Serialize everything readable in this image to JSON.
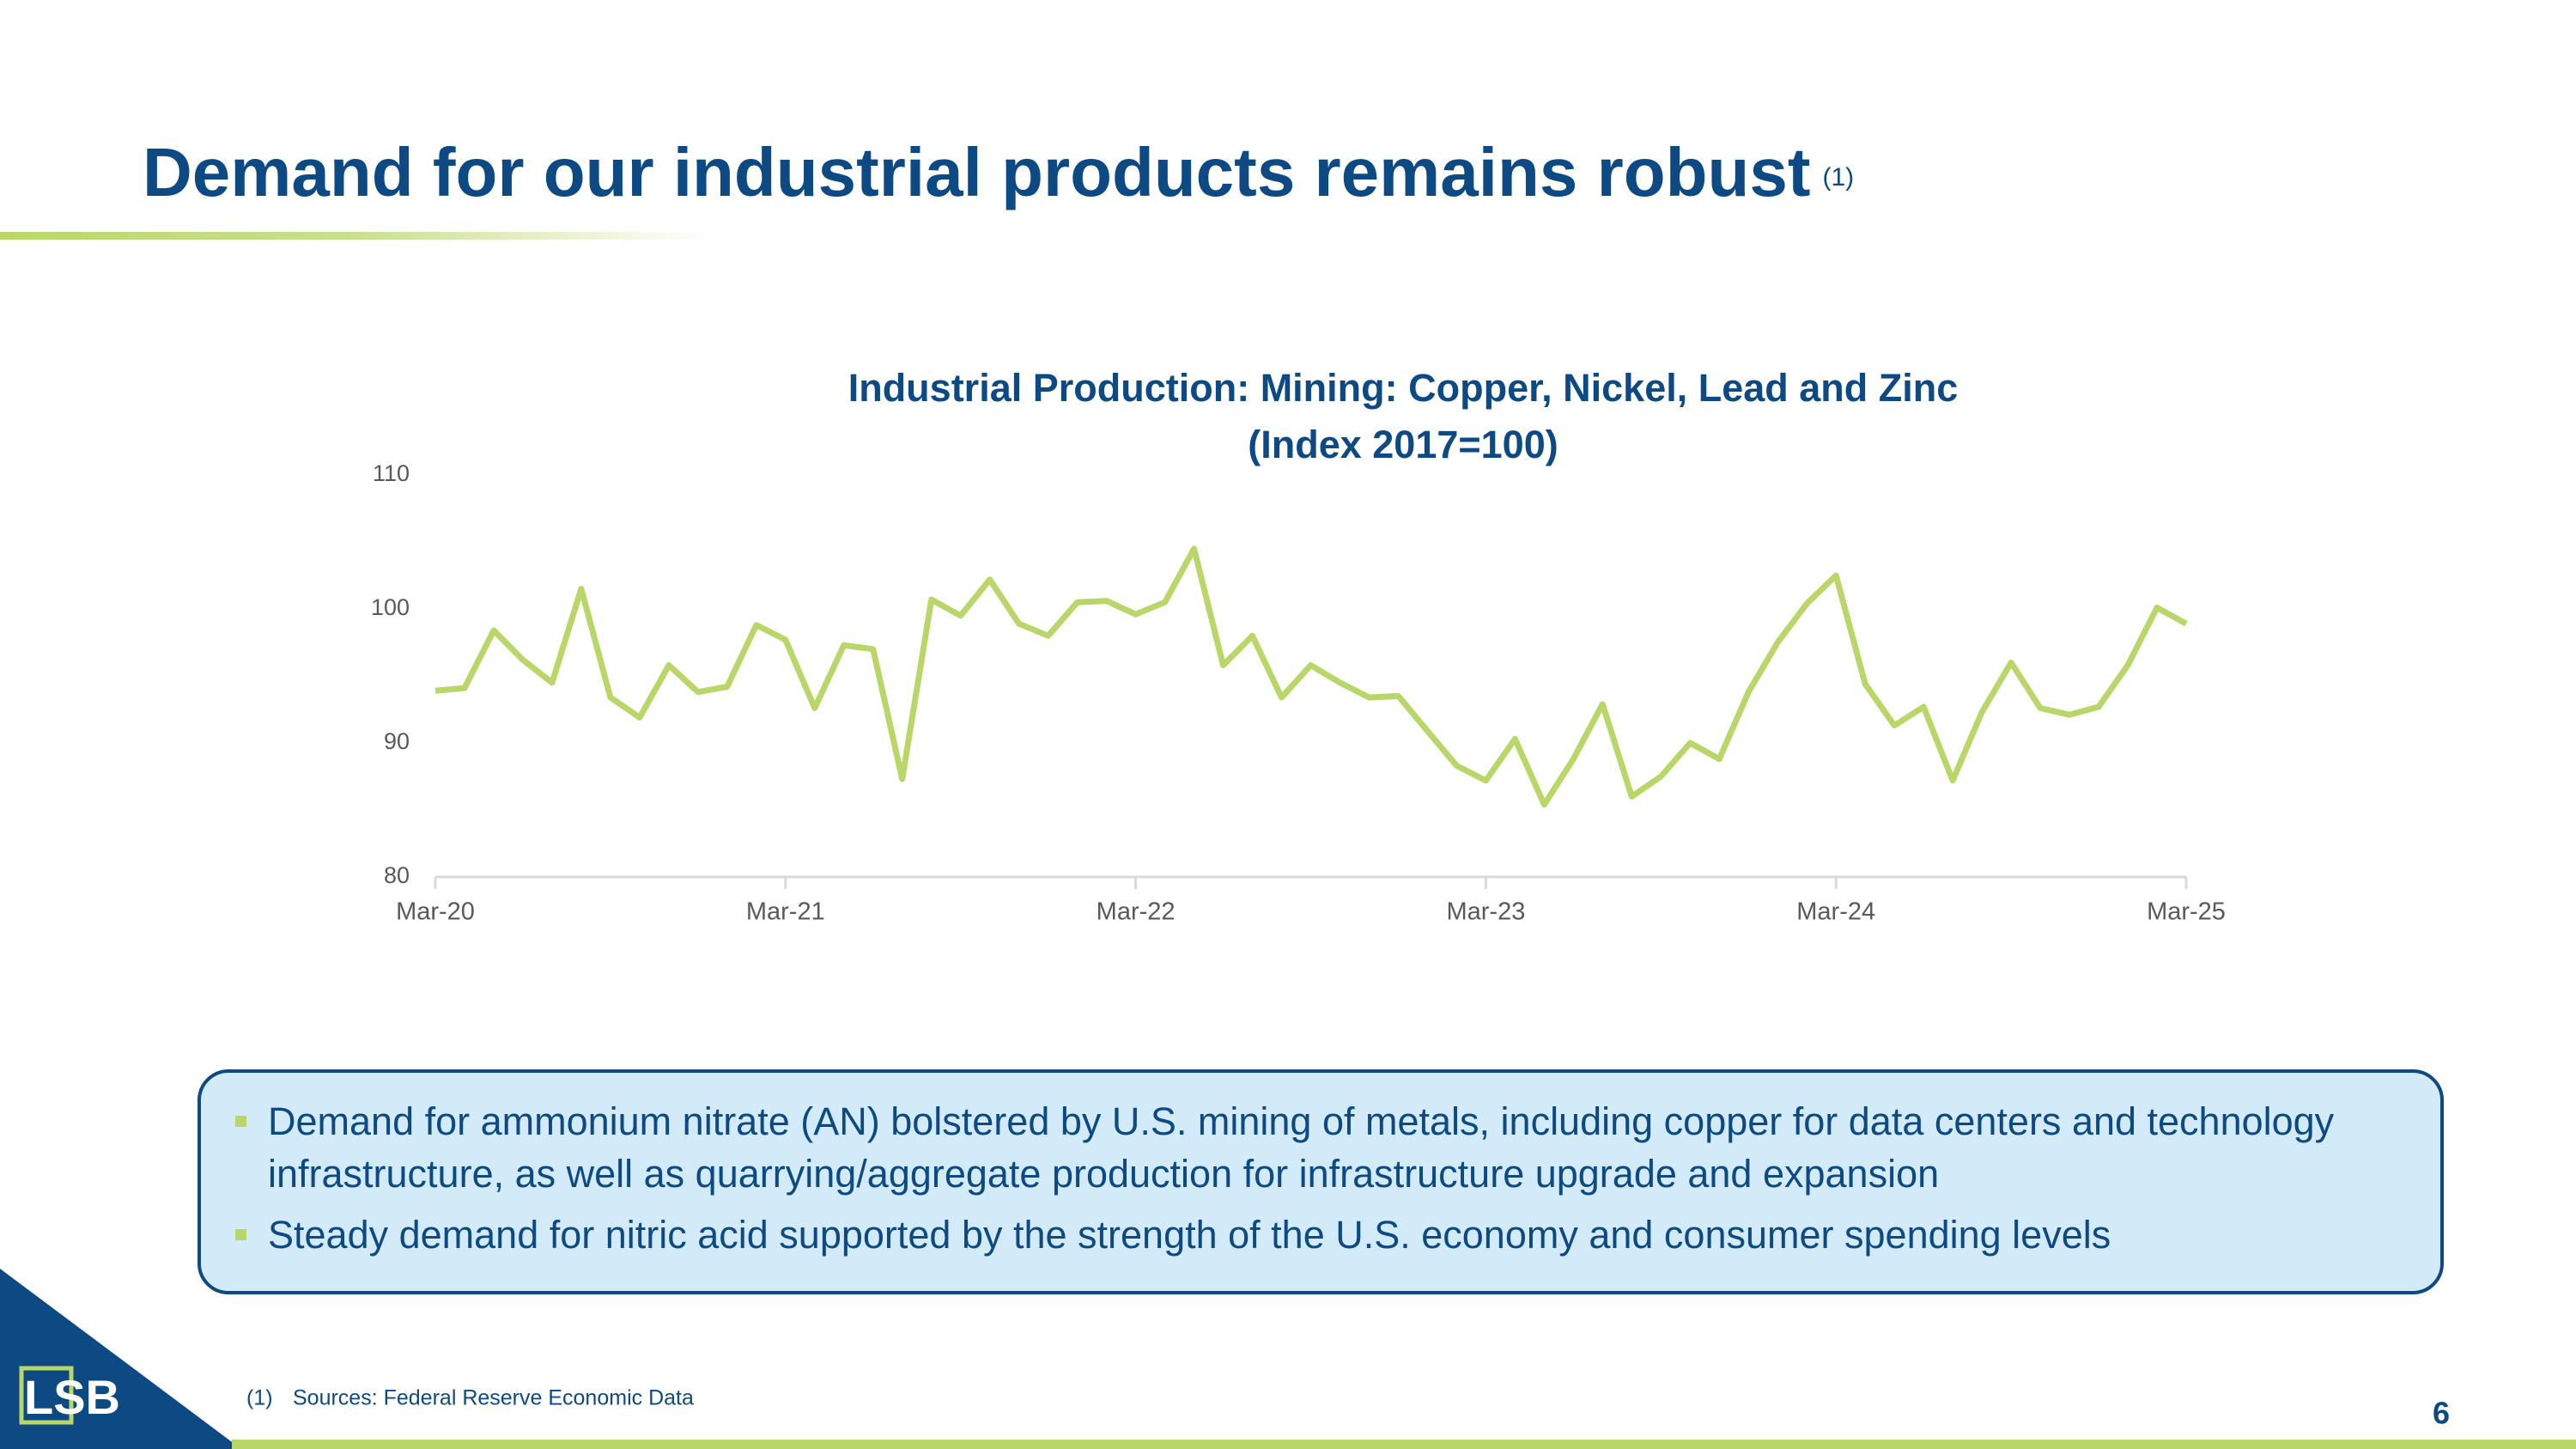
{
  "title": "Demand for our industrial products remains robust",
  "title_note": "(1)",
  "chart_data": {
    "type": "line",
    "title": "Industrial Production: Mining: Copper, Nickel, Lead and Zinc",
    "subtitle": "(Index 2017=100)",
    "categories": [
      "Mar-20",
      null,
      null,
      null,
      null,
      null,
      null,
      null,
      null,
      null,
      null,
      null,
      "Mar-21",
      null,
      null,
      null,
      null,
      null,
      null,
      null,
      null,
      null,
      null,
      null,
      "Mar-22",
      null,
      null,
      null,
      null,
      null,
      null,
      null,
      null,
      null,
      null,
      null,
      "Mar-23",
      null,
      null,
      null,
      null,
      null,
      null,
      null,
      null,
      null,
      null,
      null,
      "Mar-24",
      null,
      null,
      null,
      null,
      null,
      null,
      null,
      null,
      null,
      null,
      null,
      "Mar-25"
    ],
    "values": [
      93.9,
      94.1,
      98.4,
      96.2,
      94.5,
      101.5,
      93.4,
      91.9,
      95.8,
      93.8,
      94.2,
      98.8,
      97.7,
      92.6,
      97.3,
      97.0,
      87.3,
      100.7,
      99.5,
      102.2,
      98.9,
      98.0,
      100.5,
      100.6,
      99.6,
      100.5,
      104.5,
      95.8,
      98.0,
      93.4,
      95.8,
      94.5,
      93.4,
      93.5,
      90.9,
      88.3,
      87.2,
      90.3,
      85.4,
      88.8,
      92.9,
      86.0,
      87.5,
      90.0,
      88.8,
      93.8,
      97.5,
      100.4,
      102.5,
      94.4,
      91.3,
      92.7,
      87.2,
      92.3,
      96.0,
      92.6,
      92.1,
      92.7,
      95.8,
      100.1,
      98.9
    ],
    "color": "#b9d768",
    "ylim": [
      80,
      110
    ],
    "yticks": [
      80,
      90,
      100,
      110
    ],
    "grid": false
  },
  "bullets": [
    "Demand for ammonium nitrate (AN) bolstered by U.S. mining of metals, including copper for data centers and technology infrastructure, as well as quarrying/aggregate production for infrastructure upgrade and expansion",
    "Steady demand for nitric acid supported by the strength of the U.S. economy and consumer spending levels"
  ],
  "footnote": {
    "marker": "(1)",
    "text": "Sources: Federal Reserve Economic Data"
  },
  "logo": "LSB",
  "page_number": "6"
}
